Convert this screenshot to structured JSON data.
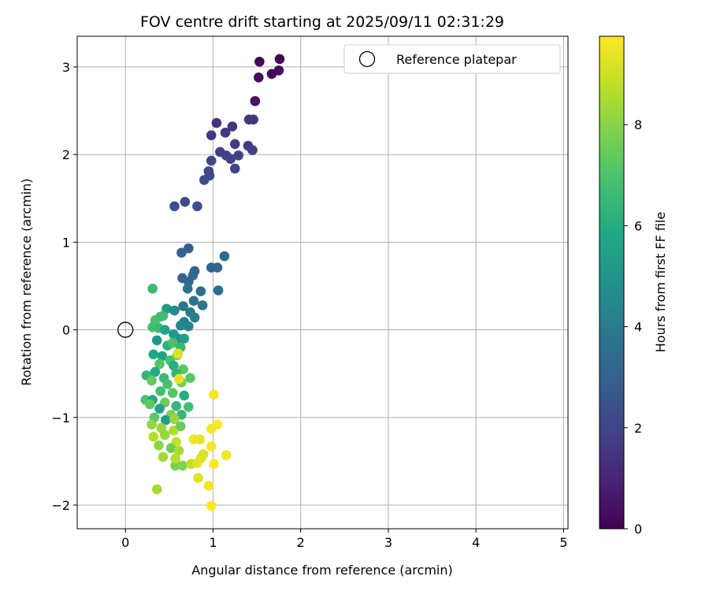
{
  "chart_data": {
    "type": "scatter",
    "title": "FOV centre drift starting at 2025/09/11 02:31:29",
    "xlabel": "Angular distance from reference (arcmin)",
    "ylabel": "Rotation from reference (arcmin)",
    "xlim": [
      -0.55,
      5.05
    ],
    "ylim": [
      -2.27,
      3.35
    ],
    "xticks": [
      "0",
      "1",
      "2",
      "3",
      "4",
      "5"
    ],
    "yticks": [
      "−2",
      "−1",
      "0",
      "1",
      "2",
      "3"
    ],
    "grid": true,
    "legend": {
      "placement": "top-right",
      "entries": [
        "Reference platepar"
      ]
    },
    "reference_point": {
      "x": 0,
      "y": 0,
      "marker": "open-circle"
    },
    "colorbar": {
      "label": "Hours from first FF file",
      "range": [
        0,
        9.75
      ],
      "ticks": [
        "0",
        "2",
        "4",
        "6",
        "8"
      ],
      "colormap": "viridis"
    },
    "points": [
      {
        "x": 1.53,
        "y": 3.06,
        "h": 0.1
      },
      {
        "x": 1.76,
        "y": 3.09,
        "h": 0.1
      },
      {
        "x": 1.67,
        "y": 2.92,
        "h": 0.2
      },
      {
        "x": 1.75,
        "y": 2.96,
        "h": 0.2
      },
      {
        "x": 1.52,
        "y": 2.88,
        "h": 0.3
      },
      {
        "x": 1.48,
        "y": 2.61,
        "h": 0.4
      },
      {
        "x": 1.48,
        "y": 2.61,
        "h": 0.5
      },
      {
        "x": 1.04,
        "y": 2.36,
        "h": 1.4
      },
      {
        "x": 1.22,
        "y": 2.32,
        "h": 1.5
      },
      {
        "x": 1.14,
        "y": 2.25,
        "h": 1.6
      },
      {
        "x": 0.98,
        "y": 2.22,
        "h": 1.6
      },
      {
        "x": 1.41,
        "y": 2.4,
        "h": 1.5
      },
      {
        "x": 1.46,
        "y": 2.4,
        "h": 1.5
      },
      {
        "x": 1.25,
        "y": 2.12,
        "h": 1.7
      },
      {
        "x": 1.4,
        "y": 2.1,
        "h": 1.7
      },
      {
        "x": 1.45,
        "y": 2.05,
        "h": 1.8
      },
      {
        "x": 1.08,
        "y": 2.03,
        "h": 1.8
      },
      {
        "x": 1.15,
        "y": 1.99,
        "h": 1.9
      },
      {
        "x": 1.2,
        "y": 1.95,
        "h": 1.9
      },
      {
        "x": 1.29,
        "y": 1.99,
        "h": 1.9
      },
      {
        "x": 0.98,
        "y": 1.93,
        "h": 2.0
      },
      {
        "x": 1.25,
        "y": 1.84,
        "h": 2.0
      },
      {
        "x": 0.95,
        "y": 1.81,
        "h": 2.1
      },
      {
        "x": 0.96,
        "y": 1.76,
        "h": 2.1
      },
      {
        "x": 0.9,
        "y": 1.71,
        "h": 2.2
      },
      {
        "x": 0.56,
        "y": 1.41,
        "h": 2.3
      },
      {
        "x": 0.68,
        "y": 1.46,
        "h": 2.3
      },
      {
        "x": 0.82,
        "y": 1.41,
        "h": 2.4
      },
      {
        "x": 0.72,
        "y": 0.93,
        "h": 2.9
      },
      {
        "x": 0.64,
        "y": 0.88,
        "h": 3.0
      },
      {
        "x": 0.98,
        "y": 0.71,
        "h": 3.2
      },
      {
        "x": 1.05,
        "y": 0.71,
        "h": 3.2
      },
      {
        "x": 1.13,
        "y": 0.84,
        "h": 3.3
      },
      {
        "x": 0.79,
        "y": 0.67,
        "h": 3.2
      },
      {
        "x": 0.77,
        "y": 0.62,
        "h": 3.3
      },
      {
        "x": 0.65,
        "y": 0.59,
        "h": 3.1
      },
      {
        "x": 0.72,
        "y": 0.55,
        "h": 3.3
      },
      {
        "x": 1.06,
        "y": 0.45,
        "h": 3.5
      },
      {
        "x": 0.71,
        "y": 0.47,
        "h": 3.6
      },
      {
        "x": 0.86,
        "y": 0.44,
        "h": 3.7
      },
      {
        "x": 0.78,
        "y": 0.33,
        "h": 3.8
      },
      {
        "x": 0.88,
        "y": 0.28,
        "h": 3.9
      },
      {
        "x": 0.66,
        "y": 0.27,
        "h": 3.9
      },
      {
        "x": 0.74,
        "y": 0.2,
        "h": 4.0
      },
      {
        "x": 0.79,
        "y": 0.14,
        "h": 4.1
      },
      {
        "x": 0.67,
        "y": 0.09,
        "h": 4.1
      },
      {
        "x": 0.72,
        "y": 0.04,
        "h": 4.3
      },
      {
        "x": 0.63,
        "y": 0.05,
        "h": 4.5
      },
      {
        "x": 0.47,
        "y": 0.24,
        "h": 5.2
      },
      {
        "x": 0.56,
        "y": 0.22,
        "h": 4.6
      },
      {
        "x": 0.6,
        "y": -0.1,
        "h": 4.9
      },
      {
        "x": 0.31,
        "y": 0.47,
        "h": 6.6
      },
      {
        "x": 0.4,
        "y": 0.15,
        "h": 6.8
      },
      {
        "x": 0.43,
        "y": 0.16,
        "h": 6.7
      },
      {
        "x": 0.34,
        "y": 0.11,
        "h": 6.9
      },
      {
        "x": 0.31,
        "y": 0.03,
        "h": 6.8
      },
      {
        "x": 0.38,
        "y": 0.02,
        "h": 6.6
      },
      {
        "x": 0.45,
        "y": 0.0,
        "h": 5.6
      },
      {
        "x": 0.55,
        "y": -0.05,
        "h": 5.3
      },
      {
        "x": 0.67,
        "y": -0.1,
        "h": 5.5
      },
      {
        "x": 0.36,
        "y": -0.12,
        "h": 5.1
      },
      {
        "x": 0.48,
        "y": -0.18,
        "h": 6.2
      },
      {
        "x": 0.54,
        "y": -0.15,
        "h": 7.0
      },
      {
        "x": 0.63,
        "y": -0.2,
        "h": 6.5
      },
      {
        "x": 0.32,
        "y": -0.28,
        "h": 5.8
      },
      {
        "x": 0.42,
        "y": -0.3,
        "h": 5.6
      },
      {
        "x": 0.51,
        "y": -0.35,
        "h": 6.9
      },
      {
        "x": 0.59,
        "y": -0.29,
        "h": 7.8
      },
      {
        "x": 0.39,
        "y": -0.39,
        "h": 7.1
      },
      {
        "x": 0.55,
        "y": -0.41,
        "h": 6.1
      },
      {
        "x": 0.66,
        "y": -0.45,
        "h": 7.2
      },
      {
        "x": 0.24,
        "y": -0.52,
        "h": 6.4
      },
      {
        "x": 0.34,
        "y": -0.48,
        "h": 5.9
      },
      {
        "x": 0.44,
        "y": -0.55,
        "h": 6.6
      },
      {
        "x": 0.58,
        "y": -0.5,
        "h": 6.3
      },
      {
        "x": 0.74,
        "y": -0.55,
        "h": 7.2
      },
      {
        "x": 0.3,
        "y": -0.58,
        "h": 7.4
      },
      {
        "x": 0.48,
        "y": -0.62,
        "h": 6.9
      },
      {
        "x": 0.64,
        "y": -0.6,
        "h": 7.7
      },
      {
        "x": 0.4,
        "y": -0.7,
        "h": 6.8
      },
      {
        "x": 0.54,
        "y": -0.72,
        "h": 7.1
      },
      {
        "x": 0.67,
        "y": -0.75,
        "h": 6.0
      },
      {
        "x": 0.23,
        "y": -0.8,
        "h": 6.9
      },
      {
        "x": 0.31,
        "y": -0.8,
        "h": 5.9
      },
      {
        "x": 0.45,
        "y": -0.83,
        "h": 7.5
      },
      {
        "x": 0.58,
        "y": -0.87,
        "h": 6.4
      },
      {
        "x": 0.72,
        "y": -0.88,
        "h": 6.8
      },
      {
        "x": 0.28,
        "y": -0.85,
        "h": 7.3
      },
      {
        "x": 0.39,
        "y": -0.9,
        "h": 5.6
      },
      {
        "x": 0.52,
        "y": -0.97,
        "h": 7.9
      },
      {
        "x": 0.64,
        "y": -0.97,
        "h": 6.5
      },
      {
        "x": 0.33,
        "y": -1.0,
        "h": 7.2
      },
      {
        "x": 0.46,
        "y": -1.03,
        "h": 5.4
      },
      {
        "x": 0.56,
        "y": -1.02,
        "h": 8.3
      },
      {
        "x": 0.3,
        "y": -1.08,
        "h": 8.1
      },
      {
        "x": 0.41,
        "y": -1.12,
        "h": 8.3
      },
      {
        "x": 0.55,
        "y": -1.15,
        "h": 8.6
      },
      {
        "x": 0.63,
        "y": -1.1,
        "h": 7.5
      },
      {
        "x": 0.32,
        "y": -1.22,
        "h": 8.7
      },
      {
        "x": 0.45,
        "y": -1.2,
        "h": 8.2
      },
      {
        "x": 0.58,
        "y": -1.28,
        "h": 8.9
      },
      {
        "x": 0.38,
        "y": -1.32,
        "h": 8.1
      },
      {
        "x": 0.52,
        "y": -1.35,
        "h": 7.6
      },
      {
        "x": 0.61,
        "y": -1.38,
        "h": 8.5
      },
      {
        "x": 0.43,
        "y": -1.45,
        "h": 8.4
      },
      {
        "x": 0.57,
        "y": -1.55,
        "h": 7.8
      },
      {
        "x": 0.65,
        "y": -1.55,
        "h": 7.9
      },
      {
        "x": 0.75,
        "y": -1.53,
        "h": 8.8
      },
      {
        "x": 0.36,
        "y": -1.82,
        "h": 8.4
      },
      {
        "x": 0.57,
        "y": -1.47,
        "h": 8.7
      },
      {
        "x": 0.61,
        "y": -0.56,
        "h": 9.4
      },
      {
        "x": 0.6,
        "y": -0.27,
        "h": 9.3
      },
      {
        "x": 1.01,
        "y": -0.74,
        "h": 9.6
      },
      {
        "x": 1.05,
        "y": -1.08,
        "h": 9.7
      },
      {
        "x": 0.98,
        "y": -1.13,
        "h": 9.6
      },
      {
        "x": 0.78,
        "y": -1.25,
        "h": 9.5
      },
      {
        "x": 0.85,
        "y": -1.25,
        "h": 9.4
      },
      {
        "x": 0.98,
        "y": -1.33,
        "h": 9.6
      },
      {
        "x": 0.89,
        "y": -1.42,
        "h": 9.3
      },
      {
        "x": 0.86,
        "y": -1.47,
        "h": 9.2
      },
      {
        "x": 1.15,
        "y": -1.43,
        "h": 9.6
      },
      {
        "x": 1.01,
        "y": -1.53,
        "h": 9.7
      },
      {
        "x": 0.82,
        "y": -1.52,
        "h": 9.4
      },
      {
        "x": 0.83,
        "y": -1.69,
        "h": 9.3
      },
      {
        "x": 0.95,
        "y": -1.78,
        "h": 9.6
      },
      {
        "x": 0.98,
        "y": -2.01,
        "h": 9.7
      }
    ]
  }
}
